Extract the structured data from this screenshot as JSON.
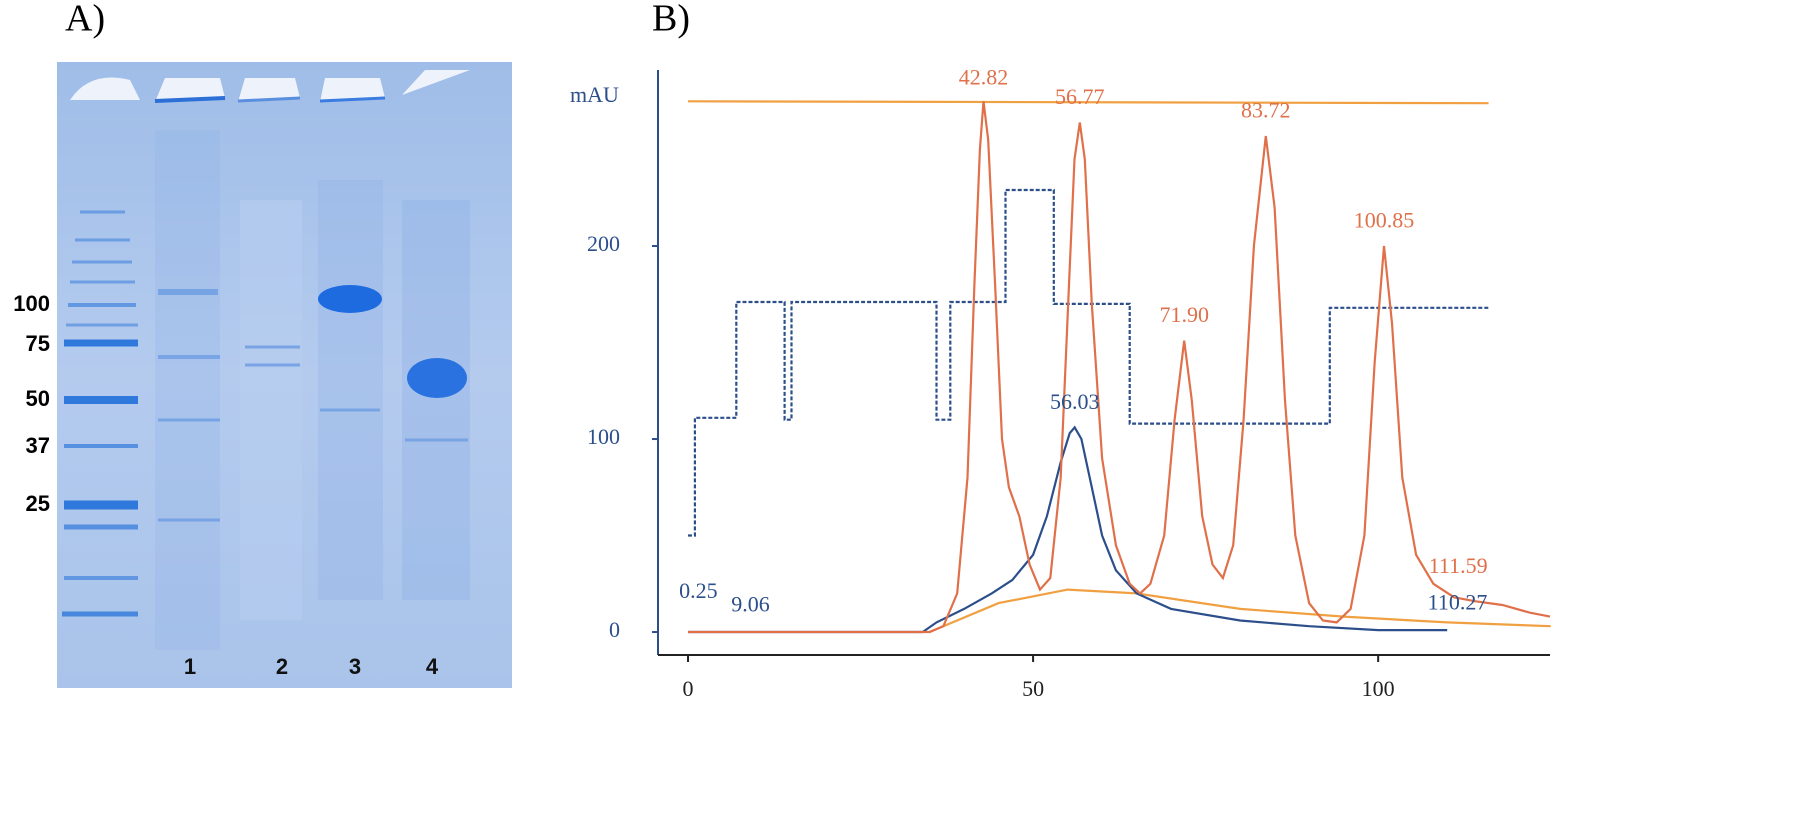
{
  "panel_a": {
    "label": "A)",
    "markers": [
      "100",
      "75",
      "50",
      "37",
      "25"
    ],
    "lanes": [
      "1",
      "2",
      "3",
      "4"
    ]
  },
  "panel_b": {
    "label": "B)"
  },
  "chart_data": {
    "type": "line",
    "ylabel": "mAU",
    "xlim": [
      -4.35,
      124.9
    ],
    "ylim": [
      -11.9,
      291.2
    ],
    "xticks": [
      0,
      50,
      100
    ],
    "yticks": [
      0,
      100,
      200
    ],
    "series": [
      {
        "color": "#f0a040",
        "x": [
          0,
          116
        ],
        "values": [
          275,
          274
        ]
      },
      {
        "color": "#2c4f8c",
        "dashed": true,
        "x": [
          0,
          0,
          1,
          1,
          7,
          7,
          14,
          14,
          15,
          15,
          36,
          36,
          38,
          38,
          46,
          46,
          53,
          53,
          64,
          64,
          93,
          93,
          116
        ],
        "values": [
          50,
          50,
          50,
          111,
          111,
          171,
          171,
          110,
          110,
          171,
          171,
          110,
          110,
          171,
          171,
          229,
          229,
          170,
          170,
          108,
          108,
          168,
          168
        ]
      },
      {
        "color": "#f0a040",
        "x": [
          35,
          45,
          55,
          65,
          80,
          95,
          110,
          125
        ],
        "values": [
          0,
          15,
          22,
          20,
          12,
          8,
          5,
          3
        ]
      },
      {
        "color": "#2c4f8c",
        "x": [
          0,
          34,
          36,
          40,
          44,
          47,
          50,
          52,
          54,
          55.3,
          56.03,
          57,
          58.5,
          60,
          62,
          65,
          70,
          80,
          90,
          100,
          110
        ],
        "values": [
          0,
          0,
          5,
          12,
          20,
          27,
          40,
          60,
          88,
          103,
          106,
          100,
          75,
          50,
          32,
          20,
          12,
          6,
          3,
          1,
          1
        ]
      },
      {
        "color": "#e0704a",
        "x": [
          0,
          35,
          37,
          39,
          40.5,
          41.5,
          42.3,
          42.82,
          43.5,
          44.5,
          45.5,
          46.5,
          48,
          49.5,
          51,
          52.5,
          54,
          55.2,
          56,
          56.77,
          57.5,
          58.5,
          60,
          62,
          64,
          65.5,
          67,
          69,
          70.5,
          71.9,
          73,
          74.5,
          76,
          77.5,
          79,
          80.5,
          82,
          83.72,
          85,
          86.5,
          88,
          90,
          92,
          94,
          96,
          98,
          99.5,
          100.85,
          102,
          103.5,
          105.5,
          108,
          111,
          114,
          118,
          122,
          124.9
        ],
        "values": [
          0,
          0,
          3,
          20,
          80,
          180,
          250,
          275,
          255,
          180,
          100,
          75,
          60,
          35,
          22,
          28,
          80,
          180,
          245,
          264,
          245,
          170,
          90,
          45,
          25,
          20,
          25,
          50,
          110,
          151,
          120,
          60,
          35,
          28,
          45,
          110,
          200,
          257,
          220,
          120,
          50,
          15,
          6,
          5,
          12,
          50,
          140,
          200,
          160,
          80,
          40,
          25,
          18,
          16,
          14,
          10,
          8
        ]
      }
    ],
    "annotations": [
      {
        "text": "42.82",
        "x": 42.82,
        "y": 280,
        "color": "#e0704a"
      },
      {
        "text": "56.77",
        "x": 56.77,
        "y": 270,
        "color": "#e0704a"
      },
      {
        "text": "83.72",
        "x": 83.72,
        "y": 263,
        "color": "#e0704a"
      },
      {
        "text": "100.85",
        "x": 100.85,
        "y": 206,
        "color": "#e0704a"
      },
      {
        "text": "71.90",
        "x": 71.9,
        "y": 157,
        "color": "#e0704a"
      },
      {
        "text": "56.03",
        "x": 56.03,
        "y": 112,
        "color": "#2c4f8c"
      },
      {
        "text": "0.25",
        "x": 1.5,
        "y": 14,
        "color": "#2c4f8c"
      },
      {
        "text": "9.06",
        "x": 9.06,
        "y": 7,
        "color": "#2c4f8c"
      },
      {
        "text": "111.59",
        "x": 111.59,
        "y": 27,
        "color": "#e0704a"
      },
      {
        "text": "110.27",
        "x": 111.5,
        "y": 8,
        "color": "#2c4f8c"
      }
    ]
  }
}
